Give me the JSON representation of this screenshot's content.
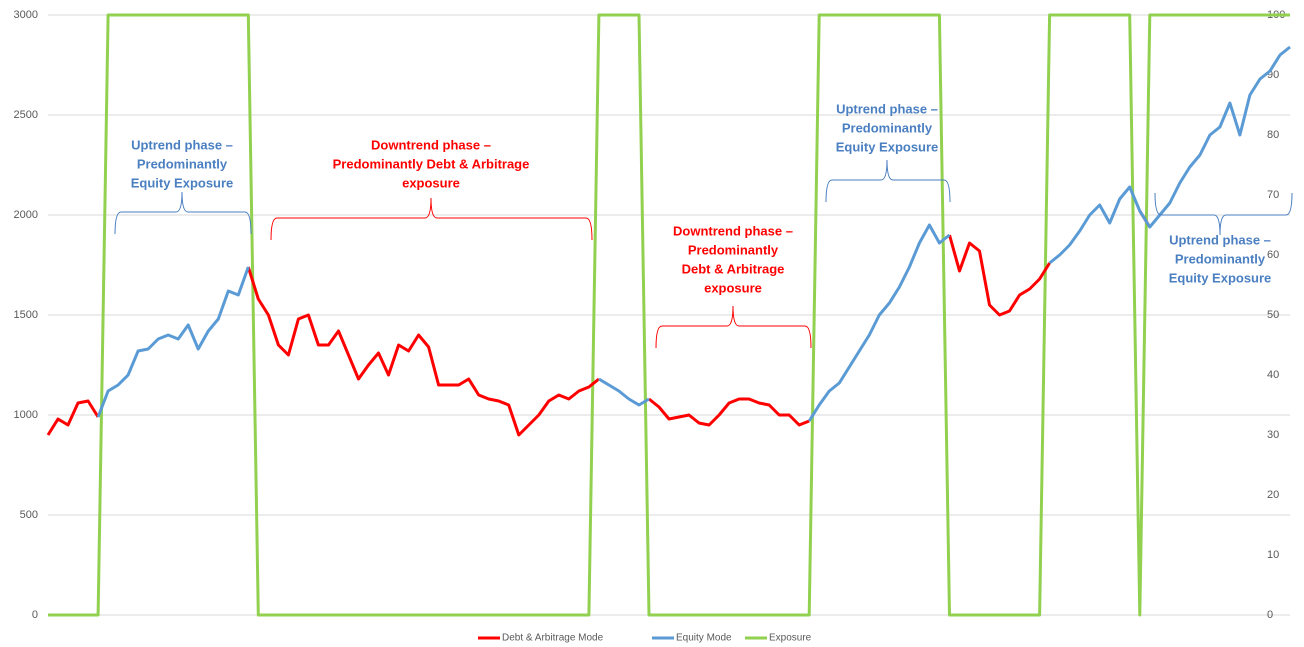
{
  "chart_data": {
    "type": "line",
    "series": [
      {
        "name": "Debt & Arbitrage Mode",
        "color": "#ff0000",
        "values": [
          900,
          980,
          950,
          1060,
          1070,
          990,
          null,
          null,
          null,
          null,
          null,
          null,
          null,
          null,
          null,
          null,
          null,
          null,
          null,
          null,
          1740,
          1580,
          1500,
          1350,
          1300,
          1480,
          1500,
          1350,
          1350,
          1420,
          1300,
          1180,
          1250,
          1310,
          1200,
          1350,
          1320,
          1400,
          1340,
          1150,
          1150,
          1150,
          1180,
          1100,
          1080,
          1070,
          1050,
          900,
          950,
          1000,
          1070,
          1100,
          1080,
          1120,
          1140,
          1180,
          null,
          null,
          null,
          null,
          1080,
          1040,
          980,
          990,
          1000,
          960,
          950,
          1000,
          1060,
          1080,
          1080,
          1060,
          1050,
          1000,
          1000,
          950,
          970,
          null,
          null,
          null,
          null,
          null,
          null,
          null,
          null,
          null,
          null,
          null,
          null,
          null,
          1900,
          1720,
          1860,
          1820,
          1550,
          1500,
          1520,
          1600,
          1630,
          1680,
          1760,
          null,
          null,
          null,
          null,
          null,
          null,
          null,
          null,
          2020,
          1940,
          null,
          null,
          null,
          null,
          null,
          null,
          null,
          null,
          null,
          null,
          null,
          null,
          null,
          null
        ]
      },
      {
        "name": "Equity Mode",
        "color": "#5b9bd5",
        "values": [
          null,
          null,
          null,
          null,
          null,
          990,
          1120,
          1150,
          1200,
          1320,
          1330,
          1380,
          1400,
          1380,
          1450,
          1330,
          1420,
          1480,
          1620,
          1600,
          1740,
          null,
          null,
          null,
          null,
          null,
          null,
          null,
          null,
          null,
          null,
          null,
          null,
          null,
          null,
          null,
          null,
          null,
          null,
          null,
          null,
          null,
          null,
          null,
          null,
          null,
          null,
          null,
          null,
          null,
          null,
          null,
          null,
          null,
          null,
          1180,
          1150,
          1120,
          1080,
          1050,
          1080,
          null,
          null,
          null,
          null,
          null,
          null,
          null,
          null,
          null,
          null,
          null,
          null,
          null,
          null,
          null,
          970,
          1050,
          1120,
          1160,
          1240,
          1320,
          1400,
          1500,
          1560,
          1640,
          1740,
          1860,
          1950,
          1860,
          1900,
          null,
          null,
          null,
          null,
          null,
          null,
          null,
          null,
          null,
          1760,
          1800,
          1850,
          1920,
          2000,
          2050,
          1960,
          2080,
          2140,
          2020,
          1940,
          2000,
          2060,
          2160,
          2240,
          2300,
          2400,
          2440,
          2560,
          2400,
          2600,
          2680,
          2720,
          2800,
          2840
        ]
      },
      {
        "name": "Exposure",
        "color": "#92d050",
        "axis": "y2",
        "values": [
          0,
          0,
          0,
          0,
          0,
          0,
          100,
          100,
          100,
          100,
          100,
          100,
          100,
          100,
          100,
          100,
          100,
          100,
          100,
          100,
          100,
          0,
          0,
          0,
          0,
          0,
          0,
          0,
          0,
          0,
          0,
          0,
          0,
          0,
          0,
          0,
          0,
          0,
          0,
          0,
          0,
          0,
          0,
          0,
          0,
          0,
          0,
          0,
          0,
          0,
          0,
          0,
          0,
          0,
          0,
          100,
          100,
          100,
          100,
          100,
          0,
          0,
          0,
          0,
          0,
          0,
          0,
          0,
          0,
          0,
          0,
          0,
          0,
          0,
          0,
          0,
          0,
          100,
          100,
          100,
          100,
          100,
          100,
          100,
          100,
          100,
          100,
          100,
          100,
          100,
          0,
          0,
          0,
          0,
          0,
          0,
          0,
          0,
          0,
          0,
          100,
          100,
          100,
          100,
          100,
          100,
          100,
          100,
          100,
          0,
          100,
          100,
          100,
          100,
          100,
          100,
          100,
          100,
          100,
          100,
          100,
          100,
          100,
          100,
          100
        ]
      }
    ],
    "ylim": [
      0,
      3000
    ],
    "yticks": [
      0,
      500,
      1000,
      1500,
      2000,
      2500,
      3000
    ],
    "y2lim": [
      0,
      100
    ],
    "y2ticks": [
      0,
      10,
      20,
      30,
      40,
      50,
      60,
      70,
      80,
      90,
      100
    ],
    "grid": true,
    "legend": "bottom",
    "annotations": [
      {
        "lines": [
          "Uptrend phase –",
          "Predominantly",
          "Equity Exposure"
        ],
        "color": "#4a7fc1"
      },
      {
        "lines": [
          "Downtrend phase –",
          "Predominantly Debt & Arbitrage",
          "exposure"
        ],
        "color": "#ff0000"
      },
      {
        "lines": [
          "Downtrend phase –",
          "Predominantly",
          "Debt & Arbitrage",
          "exposure"
        ],
        "color": "#ff0000"
      },
      {
        "lines": [
          "Uptrend phase –",
          "Predominantly",
          "Equity Exposure"
        ],
        "color": "#4a7fc1"
      },
      {
        "lines": [
          "Uptrend phase –",
          "Predominantly",
          "Equity Exposure"
        ],
        "color": "#4a7fc1"
      }
    ]
  }
}
